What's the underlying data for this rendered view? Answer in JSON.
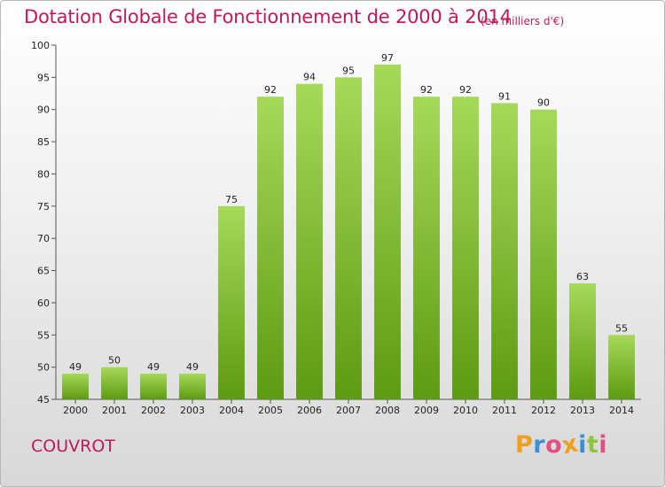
{
  "chart_data": {
    "type": "bar",
    "title": "Dotation Globale de Fonctionnement de 2000 à 2014",
    "subtitle": "(en milliers d'€)",
    "categories": [
      "2000",
      "2001",
      "2002",
      "2003",
      "2004",
      "2005",
      "2006",
      "2007",
      "2008",
      "2009",
      "2010",
      "2011",
      "2012",
      "2013",
      "2014"
    ],
    "values": [
      49,
      50,
      49,
      49,
      75,
      92,
      94,
      95,
      97,
      92,
      92,
      91,
      90,
      63,
      55
    ],
    "xlabel": "",
    "ylabel": "",
    "ylim": [
      45,
      100
    ],
    "yticks": [
      45,
      50,
      55,
      60,
      65,
      70,
      75,
      80,
      85,
      90,
      95,
      100
    ],
    "grid": false,
    "legend": "none",
    "bar_color_top": "#a6d95a",
    "bar_color_bottom": "#5e9a12",
    "data_labels": true
  },
  "commune": "COUVROT",
  "logo": {
    "letters": [
      "P",
      "r",
      "o",
      "x",
      "i",
      "t",
      "i"
    ],
    "colors": [
      "#f0a020",
      "#3a8fd8",
      "#e05080",
      "#f0a020",
      "#3a8fd8",
      "#8cc43c",
      "#e05080"
    ]
  },
  "colors": {
    "title": "#c2185b"
  }
}
